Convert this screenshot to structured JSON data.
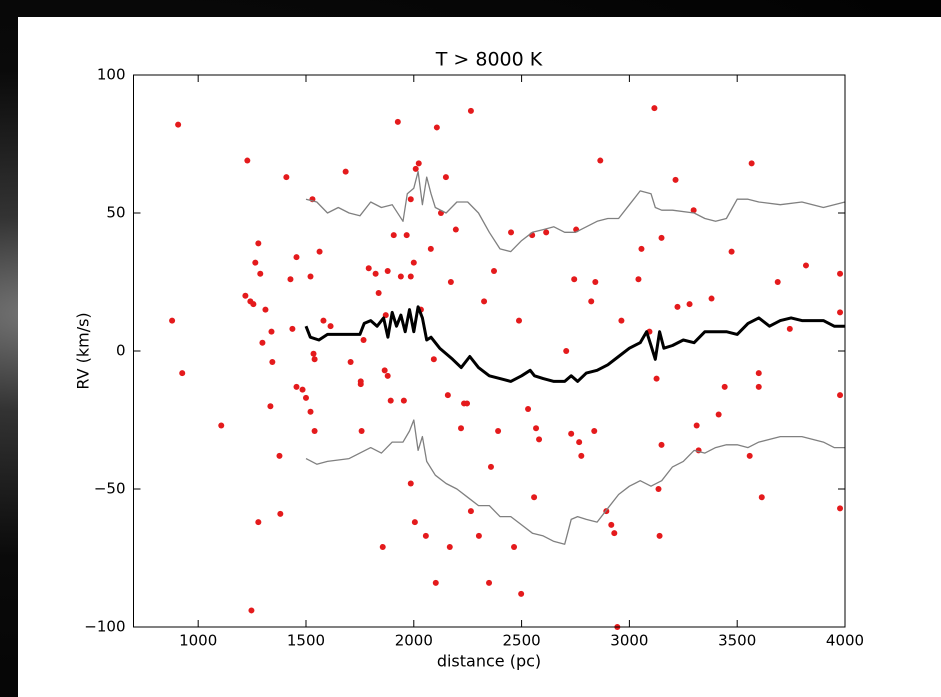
{
  "chart_data": {
    "type": "scatter",
    "title": "T > 8000 K",
    "x_label": "distance (pc)",
    "y_label": "RV (km/s)",
    "xlim": [
      700,
      4000
    ],
    "ylim": [
      -100,
      100
    ],
    "xticks": [
      1000,
      1500,
      2000,
      2500,
      3000,
      3500,
      4000
    ],
    "yticks": [
      {
        "value": -100,
        "label": "−100"
      },
      {
        "value": -50,
        "label": "−50"
      },
      0,
      50,
      100
    ],
    "series": [
      {
        "mode": "markers",
        "color": "#e41a1c",
        "x": [
          907,
          879,
          926,
          1107,
          1228,
          1219,
          1242,
          1256,
          1279,
          1265,
          1288,
          1298,
          1312,
          1340,
          1344,
          1335,
          1279,
          1247,
          1377,
          1381,
          1409,
          1428,
          1456,
          1437,
          1456,
          1484,
          1500,
          1521,
          1530,
          1535,
          1540,
          1521,
          1540,
          1563,
          1581,
          1614,
          1684,
          1707,
          1754,
          1754,
          1767,
          1758,
          1791,
          1823,
          1837,
          1856,
          1879,
          1870,
          1865,
          1879,
          1893,
          1907,
          1926,
          1940,
          1954,
          1967,
          1986,
          2000,
          1986,
          2009,
          1986,
          2005,
          2023,
          2033,
          2056,
          2079,
          2093,
          2107,
          2102,
          2126,
          2149,
          2158,
          2167,
          2172,
          2195,
          2219,
          2233,
          2247,
          2265,
          2265,
          2302,
          2326,
          2349,
          2358,
          2372,
          2391,
          2451,
          2465,
          2488,
          2498,
          2530,
          2549,
          2567,
          2558,
          2581,
          2614,
          2707,
          2730,
          2744,
          2753,
          2767,
          2777,
          2823,
          2842,
          2837,
          2865,
          2893,
          2916,
          2930,
          2944,
          2963,
          3042,
          3056,
          3093,
          3116,
          3126,
          3135,
          3140,
          3149,
          3149,
          3214,
          3223,
          3279,
          3298,
          3312,
          3321,
          3381,
          3414,
          3442,
          3474,
          3567,
          3558,
          3600,
          3600,
          3614,
          3688,
          3744,
          3819,
          3977,
          3977,
          3977,
          3977
        ],
        "values": [
          82,
          11,
          -8,
          -27,
          69,
          20,
          18,
          17,
          39,
          32,
          28,
          3,
          15,
          7,
          -4,
          -20,
          -62,
          -94,
          -38,
          -59,
          63,
          26,
          34,
          8,
          -13,
          -14,
          -17,
          27,
          55,
          -1,
          -3,
          -22,
          -29,
          36,
          11,
          9,
          65,
          -4,
          -11,
          -12,
          4,
          -29,
          30,
          28,
          21,
          -71,
          29,
          13,
          -7,
          -9,
          -18,
          42,
          83,
          27,
          -18,
          42,
          27,
          32,
          55,
          66,
          -48,
          -62,
          68,
          15,
          -67,
          37,
          -3,
          81,
          -84,
          50,
          63,
          -16,
          -71,
          25,
          44,
          -28,
          -19,
          -19,
          87,
          -58,
          -67,
          18,
          -84,
          -42,
          29,
          -29,
          43,
          -71,
          11,
          -88,
          -21,
          42,
          -28,
          -53,
          -32,
          43,
          0,
          -30,
          26,
          44,
          -33,
          -38,
          18,
          25,
          -29,
          69,
          -58,
          -63,
          -66,
          -100,
          11,
          26,
          37,
          7,
          88,
          -10,
          -50,
          -67,
          -34,
          41,
          62,
          16,
          17,
          51,
          -27,
          -36,
          19,
          -23,
          -13,
          36,
          68,
          -38,
          -8,
          -13,
          -53,
          25,
          8,
          31,
          28,
          -16,
          -57,
          14
        ]
      },
      {
        "mode": "lines",
        "color": "#000000",
        "line_width": 3,
        "x": [
          1500,
          1520,
          1560,
          1600,
          1700,
          1750,
          1770,
          1800,
          1830,
          1860,
          1880,
          1900,
          1920,
          1940,
          1960,
          1980,
          2000,
          2020,
          2040,
          2060,
          2080,
          2120,
          2180,
          2220,
          2260,
          2300,
          2350,
          2400,
          2450,
          2500,
          2540,
          2560,
          2600,
          2650,
          2700,
          2730,
          2760,
          2800,
          2850,
          2900,
          2950,
          3000,
          3050,
          3080,
          3100,
          3120,
          3140,
          3160,
          3200,
          3250,
          3300,
          3350,
          3400,
          3450,
          3500,
          3550,
          3600,
          3650,
          3700,
          3750,
          3800,
          3900,
          3950,
          4000
        ],
        "values": [
          9,
          5,
          4,
          6,
          6,
          6,
          10,
          11,
          9,
          12,
          5,
          14,
          9,
          13,
          7,
          15,
          7,
          16,
          12,
          4,
          5,
          1,
          -3,
          -6,
          -2,
          -6,
          -9,
          -10,
          -11,
          -9,
          -7,
          -9,
          -10,
          -11,
          -11,
          -9,
          -11,
          -8,
          -7,
          -5,
          -2,
          1,
          3,
          7,
          2,
          -3,
          7,
          1,
          2,
          4,
          3,
          7,
          7,
          7,
          6,
          10,
          12,
          9,
          11,
          12,
          11,
          11,
          9,
          9
        ]
      },
      {
        "mode": "lines",
        "color": "#808080",
        "line_width": 1.3,
        "x": [
          1500,
          1550,
          1600,
          1650,
          1700,
          1750,
          1800,
          1850,
          1900,
          1950,
          1970,
          2000,
          2020,
          2040,
          2060,
          2080,
          2100,
          2150,
          2200,
          2250,
          2300,
          2350,
          2400,
          2450,
          2500,
          2550,
          2600,
          2650,
          2700,
          2750,
          2800,
          2850,
          2900,
          2950,
          3000,
          3050,
          3100,
          3120,
          3150,
          3200,
          3300,
          3350,
          3400,
          3450,
          3500,
          3550,
          3600,
          3700,
          3800,
          3900,
          3950,
          4000
        ],
        "values": [
          55,
          54,
          50,
          52,
          50,
          49,
          54,
          52,
          53,
          47,
          57,
          59,
          65,
          53,
          63,
          57,
          52,
          50,
          54,
          54,
          50,
          43,
          37,
          36,
          40,
          43,
          44,
          45,
          43,
          43,
          45,
          47,
          48,
          48,
          53,
          58,
          57,
          52,
          51,
          51,
          50,
          48,
          47,
          48,
          55,
          55,
          54,
          53,
          54,
          52,
          53,
          54
        ]
      },
      {
        "mode": "lines",
        "color": "#808080",
        "line_width": 1.3,
        "x": [
          1500,
          1550,
          1600,
          1700,
          1800,
          1850,
          1900,
          1950,
          1980,
          2000,
          2020,
          2040,
          2060,
          2100,
          2150,
          2200,
          2250,
          2300,
          2350,
          2400,
          2450,
          2500,
          2550,
          2600,
          2650,
          2700,
          2730,
          2760,
          2800,
          2850,
          2900,
          2950,
          3000,
          3050,
          3100,
          3150,
          3200,
          3250,
          3300,
          3350,
          3400,
          3450,
          3500,
          3550,
          3600,
          3700,
          3800,
          3900,
          3950,
          4000
        ],
        "values": [
          -39,
          -41,
          -40,
          -39,
          -35,
          -37,
          -33,
          -33,
          -29,
          -25,
          -36,
          -31,
          -40,
          -45,
          -48,
          -50,
          -53,
          -56,
          -56,
          -60,
          -60,
          -63,
          -66,
          -67,
          -69,
          -70,
          -61,
          -60,
          -61,
          -62,
          -57,
          -52,
          -49,
          -47,
          -49,
          -47,
          -42,
          -40,
          -36,
          -37,
          -35,
          -34,
          -34,
          -35,
          -33,
          -31,
          -31,
          -33,
          -35,
          -35
        ]
      }
    ]
  }
}
